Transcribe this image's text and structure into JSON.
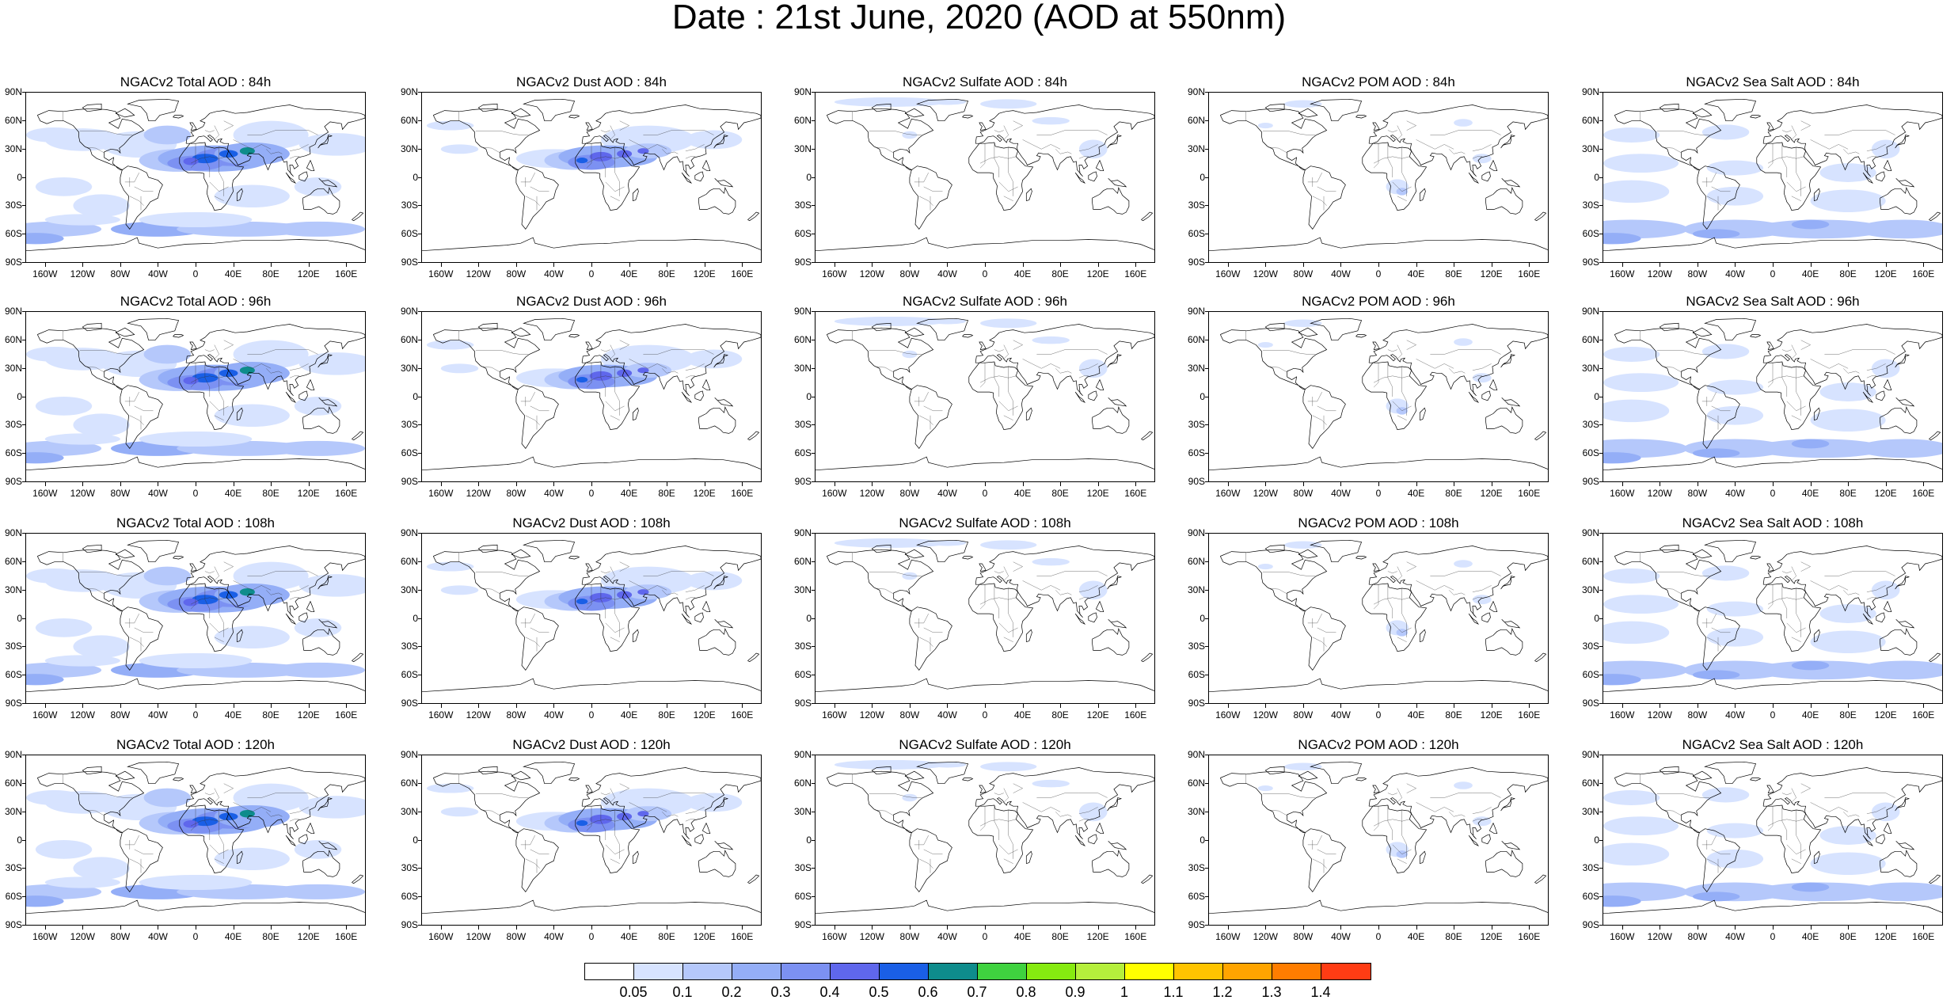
{
  "title": "Date : 21st June, 2020 (AOD at 550nm)",
  "lat_labels": [
    "90N",
    "60N",
    "30N",
    "0",
    "30S",
    "60S",
    "90S"
  ],
  "lon_labels": [
    "160W",
    "120W",
    "80W",
    "40W",
    "0",
    "40E",
    "80E",
    "120E",
    "160E"
  ],
  "panels": [
    {
      "title": "NGACv2 Total AOD : 84h",
      "species": "total"
    },
    {
      "title": "NGACv2 Dust AOD : 84h",
      "species": "dust"
    },
    {
      "title": "NGACv2 Sulfate AOD : 84h",
      "species": "sulfate"
    },
    {
      "title": "NGACv2 POM AOD : 84h",
      "species": "pom"
    },
    {
      "title": "NGACv2 Sea Salt AOD : 84h",
      "species": "seasalt"
    },
    {
      "title": "NGACv2 Total AOD : 96h",
      "species": "total"
    },
    {
      "title": "NGACv2 Dust AOD : 96h",
      "species": "dust"
    },
    {
      "title": "NGACv2 Sulfate AOD : 96h",
      "species": "sulfate"
    },
    {
      "title": "NGACv2 POM AOD : 96h",
      "species": "pom"
    },
    {
      "title": "NGACv2 Sea Salt AOD : 96h",
      "species": "seasalt"
    },
    {
      "title": "NGACv2 Total AOD : 108h",
      "species": "total"
    },
    {
      "title": "NGACv2 Dust AOD : 108h",
      "species": "dust"
    },
    {
      "title": "NGACv2 Sulfate AOD : 108h",
      "species": "sulfate"
    },
    {
      "title": "NGACv2 POM AOD : 108h",
      "species": "pom"
    },
    {
      "title": "NGACv2 Sea Salt AOD : 108h",
      "species": "seasalt"
    },
    {
      "title": "NGACv2 Total AOD : 120h",
      "species": "total"
    },
    {
      "title": "NGACv2 Dust AOD : 120h",
      "species": "dust"
    },
    {
      "title": "NGACv2 Sulfate AOD : 120h",
      "species": "sulfate"
    },
    {
      "title": "NGACv2 POM AOD : 120h",
      "species": "pom"
    },
    {
      "title": "NGACv2 Sea Salt  AOD : 120h",
      "species": "seasalt"
    }
  ],
  "colorbar": {
    "colors": [
      "#ffffff",
      "#d7e3ff",
      "#b5c8fb",
      "#94aef7",
      "#7c91f2",
      "#5f67ec",
      "#1a5fe6",
      "#0e8c8c",
      "#3fd23f",
      "#86ea10",
      "#b5ef3c",
      "#ffff00",
      "#ffc400",
      "#ffa400",
      "#ff7d00",
      "#ff3c14"
    ],
    "labels": [
      "0.05",
      "0.1",
      "0.2",
      "0.3",
      "0.4",
      "0.5",
      "0.6",
      "0.7",
      "0.8",
      "0.9",
      "1",
      "1.1",
      "1.2",
      "1.3",
      "1.4"
    ]
  }
}
